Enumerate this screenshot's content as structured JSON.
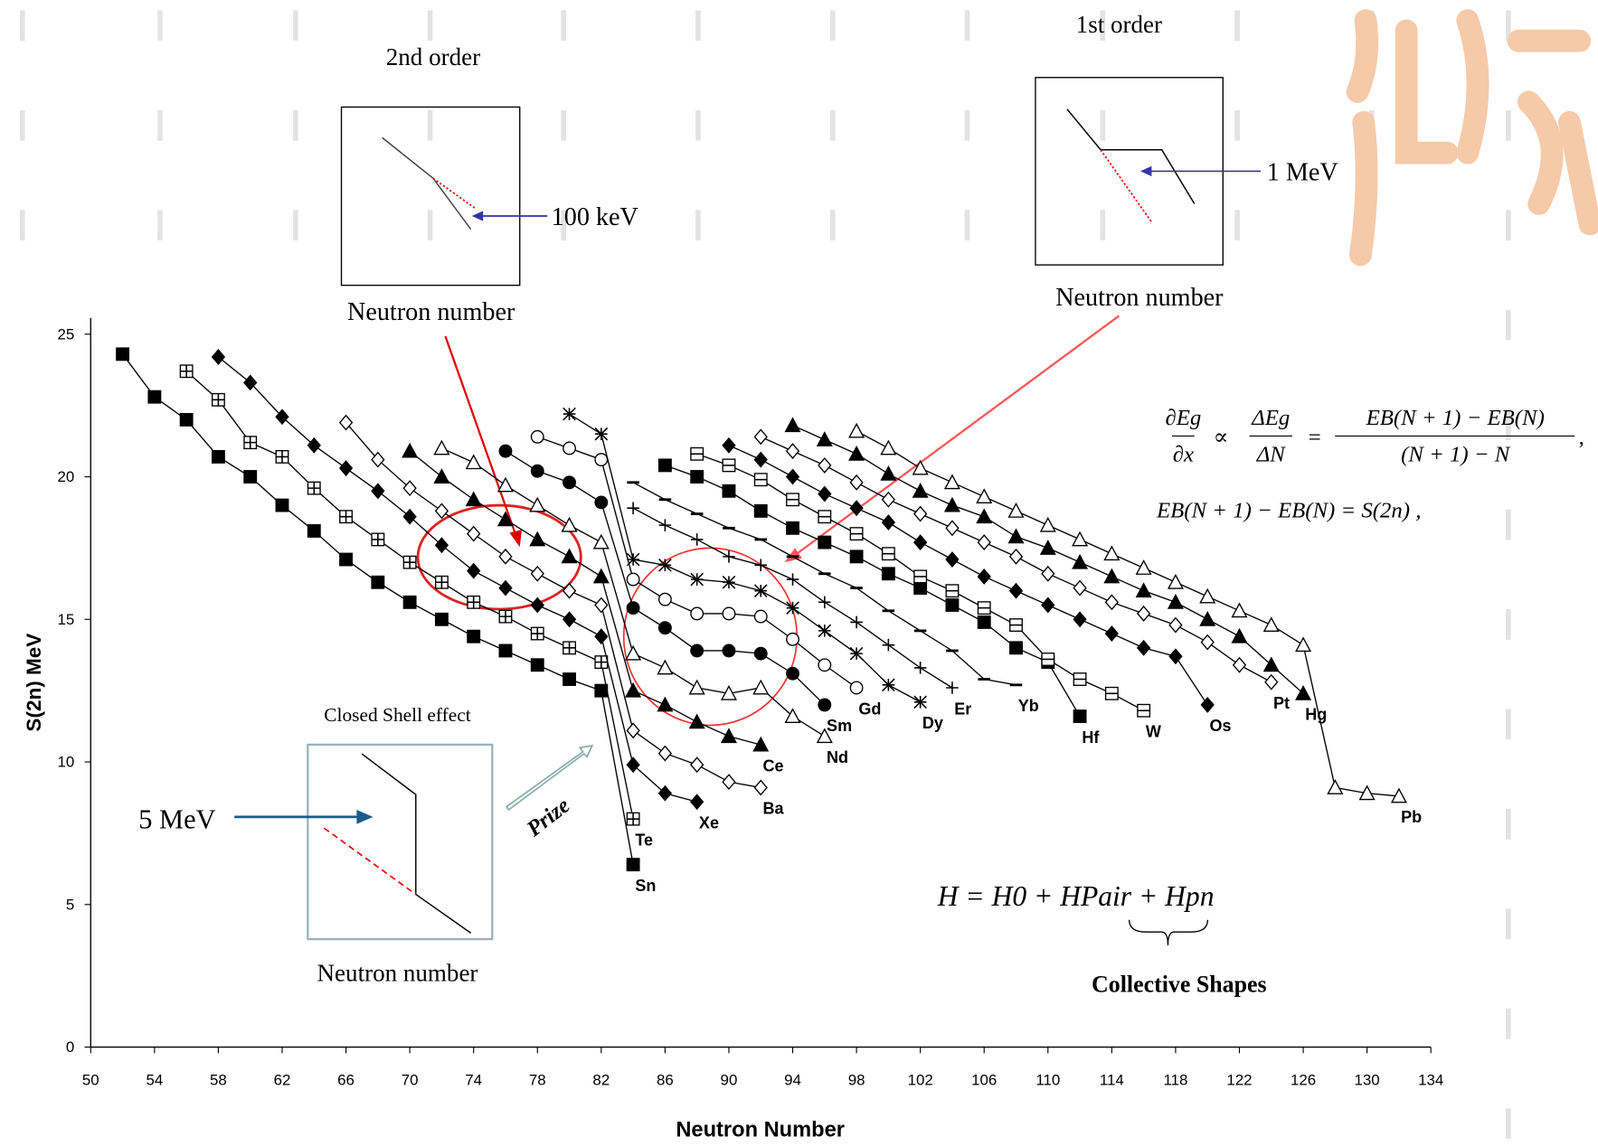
{
  "chart_data": {
    "type": "line",
    "xlabel": "Neutron Number",
    "ylabel": "S(2n) MeV",
    "xlim": [
      50,
      134
    ],
    "xticks": [
      50,
      54,
      58,
      62,
      66,
      70,
      74,
      78,
      82,
      86,
      90,
      94,
      98,
      102,
      106,
      110,
      114,
      118,
      122,
      126,
      130,
      134
    ],
    "ylim": [
      0,
      25
    ],
    "yticks": [
      0,
      5,
      10,
      15,
      20,
      25
    ],
    "color": "#000000",
    "series": [
      {
        "name": "Sn",
        "marker": "filled-square",
        "x": [
          52,
          54,
          56,
          58,
          60,
          62,
          64,
          66,
          68,
          70,
          72,
          74,
          76,
          78,
          80,
          82,
          84
        ],
        "values": [
          24.3,
          22.8,
          22.0,
          20.7,
          20.0,
          19.0,
          18.1,
          17.1,
          16.3,
          15.6,
          15.0,
          14.4,
          13.9,
          13.4,
          12.9,
          12.5,
          6.4
        ]
      },
      {
        "name": "Te",
        "marker": "boxed-plus",
        "x": [
          56,
          58,
          60,
          62,
          64,
          66,
          68,
          70,
          72,
          74,
          76,
          78,
          80,
          82,
          84
        ],
        "values": [
          23.7,
          22.7,
          21.2,
          20.7,
          19.6,
          18.6,
          17.8,
          17.0,
          16.3,
          15.6,
          15.1,
          14.5,
          14.0,
          13.5,
          8.0
        ]
      },
      {
        "name": "Xe",
        "marker": "filled-diamond",
        "x": [
          58,
          60,
          62,
          64,
          66,
          68,
          70,
          72,
          74,
          76,
          78,
          80,
          82,
          84,
          86,
          88
        ],
        "values": [
          24.2,
          23.3,
          22.1,
          21.1,
          20.3,
          19.5,
          18.6,
          17.6,
          16.7,
          16.1,
          15.5,
          15.0,
          14.4,
          9.9,
          8.9,
          8.6
        ]
      },
      {
        "name": "Ba",
        "marker": "open-diamond",
        "x": [
          66,
          68,
          70,
          72,
          74,
          76,
          78,
          80,
          82,
          84,
          86,
          88,
          90,
          92
        ],
        "values": [
          21.9,
          20.6,
          19.6,
          18.8,
          18.0,
          17.2,
          16.6,
          16.0,
          15.5,
          11.1,
          10.3,
          9.9,
          9.3,
          9.1
        ]
      },
      {
        "name": "Ce",
        "marker": "filled-triangle",
        "x": [
          70,
          72,
          74,
          76,
          78,
          80,
          82,
          84,
          86,
          88,
          90,
          92
        ],
        "values": [
          20.9,
          20.0,
          19.2,
          18.5,
          17.8,
          17.2,
          16.5,
          12.5,
          12.0,
          11.4,
          10.9,
          10.6
        ]
      },
      {
        "name": "Nd",
        "marker": "open-triangle",
        "x": [
          72,
          74,
          76,
          78,
          80,
          82,
          84,
          86,
          88,
          90,
          92,
          94,
          96
        ],
        "values": [
          21.0,
          20.5,
          19.7,
          19.0,
          18.3,
          17.7,
          13.8,
          13.3,
          12.6,
          12.4,
          12.6,
          11.6,
          10.9
        ]
      },
      {
        "name": "Sm",
        "marker": "filled-circle",
        "x": [
          76,
          78,
          80,
          82,
          84,
          86,
          88,
          90,
          92,
          94,
          96
        ],
        "values": [
          20.9,
          20.2,
          19.8,
          19.1,
          15.4,
          14.7,
          13.9,
          13.9,
          13.8,
          13.1,
          12.0
        ]
      },
      {
        "name": "Gd",
        "marker": "open-circle",
        "x": [
          78,
          80,
          82,
          84,
          86,
          88,
          90,
          92,
          94,
          96,
          98
        ],
        "values": [
          21.4,
          21.0,
          20.6,
          16.4,
          15.7,
          15.2,
          15.2,
          15.1,
          14.3,
          13.4,
          12.6
        ]
      },
      {
        "name": "Dy",
        "marker": "asterisk",
        "x": [
          80,
          82,
          84,
          86,
          88,
          90,
          92,
          94,
          96,
          98,
          100,
          102
        ],
        "values": [
          22.2,
          21.5,
          17.1,
          16.9,
          16.4,
          16.3,
          16.0,
          15.4,
          14.6,
          13.8,
          12.7,
          12.1
        ]
      },
      {
        "name": "Er",
        "marker": "plus",
        "x": [
          84,
          86,
          88,
          90,
          92,
          94,
          96,
          98,
          100,
          102,
          104
        ],
        "values": [
          18.9,
          18.3,
          17.8,
          17.2,
          16.9,
          16.4,
          15.6,
          14.9,
          14.1,
          13.3,
          12.6
        ]
      },
      {
        "name": "Yb",
        "marker": "dash",
        "x": [
          84,
          86,
          88,
          90,
          92,
          94,
          96,
          98,
          100,
          102,
          104,
          106,
          108
        ],
        "values": [
          19.8,
          19.2,
          18.7,
          18.2,
          17.8,
          17.2,
          16.6,
          16.1,
          15.3,
          14.6,
          13.9,
          12.9,
          12.7
        ]
      },
      {
        "name": "Hf",
        "marker": "filled-square",
        "x": [
          86,
          88,
          90,
          92,
          94,
          96,
          98,
          100,
          102,
          104,
          106,
          108,
          110,
          112
        ],
        "values": [
          20.4,
          20.0,
          19.5,
          18.8,
          18.2,
          17.7,
          17.2,
          16.6,
          16.1,
          15.5,
          14.9,
          14.0,
          13.5,
          11.6
        ]
      },
      {
        "name": "W",
        "marker": "boxed-minus",
        "x": [
          88,
          90,
          92,
          94,
          96,
          98,
          100,
          102,
          104,
          106,
          108,
          110,
          112,
          114,
          116
        ],
        "values": [
          20.8,
          20.4,
          19.9,
          19.2,
          18.6,
          18.0,
          17.3,
          16.5,
          16.0,
          15.4,
          14.8,
          13.6,
          12.9,
          12.4,
          11.8
        ]
      },
      {
        "name": "Os",
        "marker": "filled-diamond",
        "x": [
          90,
          92,
          94,
          96,
          98,
          100,
          102,
          104,
          106,
          108,
          110,
          112,
          114,
          116,
          118,
          120
        ],
        "values": [
          21.1,
          20.6,
          20.0,
          19.4,
          18.9,
          18.4,
          17.7,
          17.1,
          16.5,
          16.0,
          15.5,
          15.0,
          14.5,
          14.0,
          13.7,
          12.0
        ]
      },
      {
        "name": "Pt",
        "marker": "open-diamond",
        "x": [
          92,
          94,
          96,
          98,
          100,
          102,
          104,
          106,
          108,
          110,
          112,
          114,
          116,
          118,
          120,
          122,
          124
        ],
        "values": [
          21.4,
          20.9,
          20.4,
          19.8,
          19.2,
          18.7,
          18.2,
          17.7,
          17.2,
          16.6,
          16.1,
          15.6,
          15.2,
          14.8,
          14.2,
          13.4,
          12.8
        ]
      },
      {
        "name": "Hg",
        "marker": "filled-triangle",
        "x": [
          94,
          96,
          98,
          100,
          102,
          104,
          106,
          108,
          110,
          112,
          114,
          116,
          118,
          120,
          122,
          124,
          126
        ],
        "values": [
          21.8,
          21.3,
          20.8,
          20.1,
          19.5,
          19.0,
          18.6,
          17.9,
          17.5,
          17.0,
          16.5,
          16.0,
          15.6,
          15.0,
          14.4,
          13.4,
          12.4
        ]
      },
      {
        "name": "Pb",
        "marker": "open-triangle",
        "x": [
          98,
          100,
          102,
          104,
          106,
          108,
          110,
          112,
          114,
          116,
          118,
          120,
          122,
          124,
          126,
          128,
          130,
          132
        ],
        "values": [
          21.6,
          21.0,
          20.3,
          19.8,
          19.3,
          18.8,
          18.3,
          17.8,
          17.3,
          16.8,
          16.3,
          15.8,
          15.3,
          14.8,
          14.1,
          9.1,
          8.9,
          8.8
        ]
      }
    ],
    "annotations": {
      "second_order": {
        "title": "2nd order",
        "xlabel": "Neutron number",
        "note": "100 keV"
      },
      "first_order": {
        "title": "1st order",
        "xlabel": "Neutron number",
        "note": "1 MeV"
      },
      "closed_shell": {
        "title": "Closed Shell effect",
        "xlabel": "Neutron number",
        "note": "5 MeV"
      },
      "prize": "Prize",
      "equation_1": {
        "lhs_num": "∂Eg",
        "lhs_den": "∂x",
        "prop": "∝",
        "mid_num": "ΔEg",
        "mid_den": "ΔN",
        "eq": "=",
        "rhs_num": "EB(N + 1) − EB(N)",
        "rhs_den": "(N + 1) − N",
        "end": ","
      },
      "equation_2": "EB(N + 1) − EB(N) = S(2n) ,",
      "hamiltonian": "H = H0 + HPair + Hpn",
      "collective": "Collective Shapes"
    }
  }
}
